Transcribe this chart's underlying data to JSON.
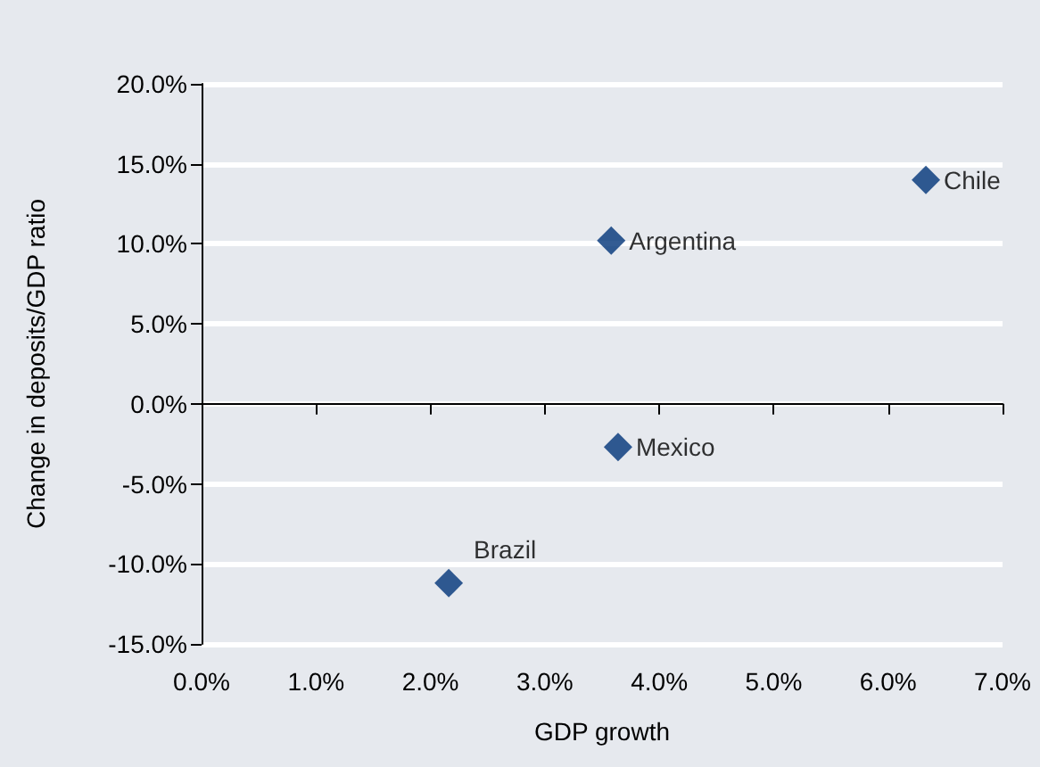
{
  "chart_data": {
    "type": "scatter",
    "xlabel": "GDP growth",
    "ylabel": "Change in deposits/GDP ratio",
    "x": [
      6.33,
      3.58,
      3.64,
      2.16
    ],
    "series": [
      {
        "color": "#003378",
        "values": [
          14.0,
          10.2,
          -2.7,
          -11.2
        ]
      }
    ],
    "marker": "diamond",
    "grid": "y",
    "xlim": [
      0,
      7
    ],
    "ylim": [
      -15,
      20
    ],
    "xticks": [
      {
        "value": 0,
        "label": "0.0%"
      },
      {
        "value": 1,
        "label": "1.0%"
      },
      {
        "value": 2,
        "label": "2.0%"
      },
      {
        "value": 3,
        "label": "3.0%"
      },
      {
        "value": 4,
        "label": "4.0%"
      },
      {
        "value": 5,
        "label": "5.0%"
      },
      {
        "value": 6,
        "label": "6.0%"
      },
      {
        "value": 7,
        "label": "7.0%"
      }
    ],
    "yticks": [
      {
        "value": -15,
        "label": "-15.0%"
      },
      {
        "value": -10,
        "label": "-10.0%"
      },
      {
        "value": -5,
        "label": "-5.0%"
      },
      {
        "value": 0,
        "label": "0.0%"
      },
      {
        "value": 5,
        "label": "5.0%"
      },
      {
        "value": 10,
        "label": "10.0%"
      },
      {
        "value": 15,
        "label": "15.0%"
      },
      {
        "value": 20,
        "label": "20.0%"
      }
    ],
    "annotations": [
      {
        "text": "Chile",
        "x": 6.33,
        "y": 14.0
      },
      {
        "text": "Argentina",
        "x": 3.58,
        "y": 10.2
      },
      {
        "text": "Mexico",
        "x": 3.64,
        "y": -2.7
      },
      {
        "text": "Brazil",
        "x": 2.16,
        "y": -11.2
      }
    ]
  }
}
